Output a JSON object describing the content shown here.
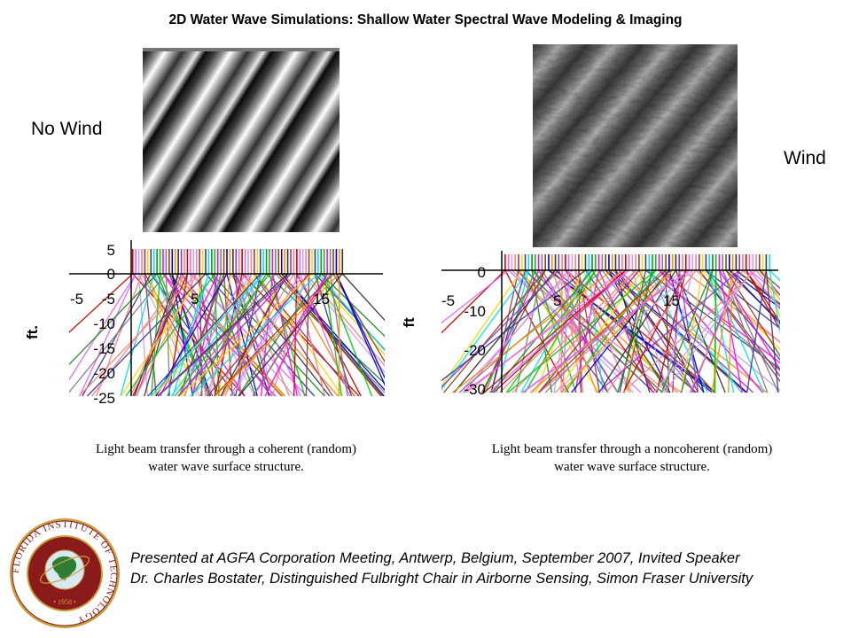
{
  "title": "2D Water Wave Simulations: Shallow Water Spectral Wave Modeling & Imaging",
  "left_label": "No Wind",
  "right_label": "Wind",
  "left_plot": {
    "y_ticks": [
      "5",
      "0",
      "-5",
      "-10",
      "-15",
      "-20",
      "-25"
    ],
    "x_ticks": [
      "-5",
      "5",
      "15"
    ],
    "unit": "ft."
  },
  "right_plot": {
    "y_ticks": [
      "0",
      "-10",
      "-20",
      "-30"
    ],
    "x_ticks": [
      "-5",
      "5",
      "15"
    ],
    "unit": "ft"
  },
  "caption_left": "Light beam transfer through a coherent (random) water wave surface structure.",
  "caption_right": "Light beam transfer through a noncoherent (random) water wave surface structure.",
  "seal": {
    "text": "FLORIDA INSTITUTE OF TECHNOLOGY",
    "year": "1958",
    "colors": {
      "ring": "#8b1a1a",
      "gold": "#c8a040",
      "globe": "#2e7d32"
    }
  },
  "credit_line1": "Presented at AGFA Corporation Meeting, Antwerp, Belgium, September 2007, Invited Speaker",
  "credit_line2": "Dr. Charles Bostater, Distinguished Fulbright Chair in Airborne Sensing, Simon Fraser University",
  "ray_colors": [
    "#cc0000",
    "#e066ff",
    "#c8a2e8",
    "#ff8080",
    "#8b3a62",
    "#ffd700",
    "#3a3a8c",
    "#00e5ee",
    "#228b22",
    "#00cc00",
    "#ff00ff",
    "#808080",
    "#8b4513",
    "#0000cd",
    "#ff8c00",
    "#333333",
    "#9932cc",
    "#f08080"
  ]
}
